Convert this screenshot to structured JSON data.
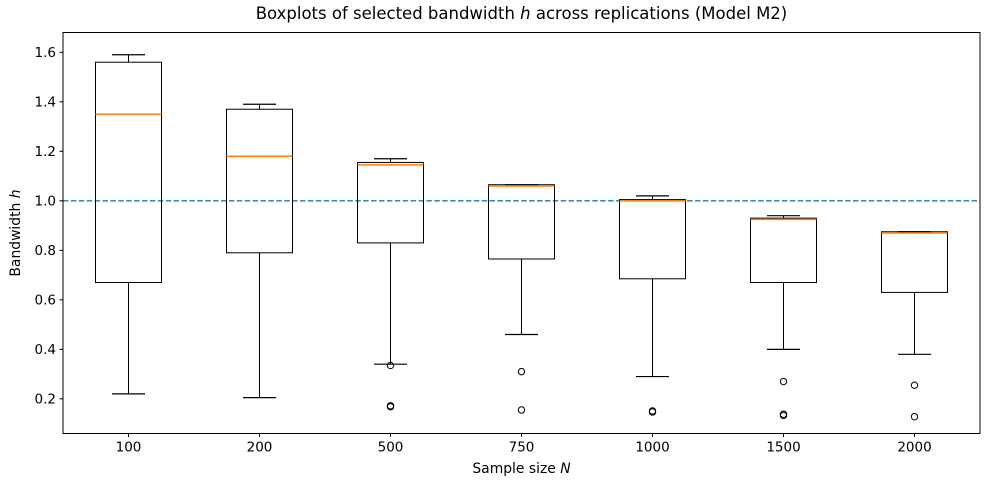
{
  "chart_data": {
    "type": "boxplot",
    "title": "Boxplots of selected bandwidth h across replications (Model M2)",
    "title_parts": {
      "prefix": "Boxplots of selected bandwidth ",
      "italic": "h",
      "suffix": " across replications (Model M2)"
    },
    "xlabel": "Sample size N",
    "xlabel_parts": {
      "prefix": "Sample size ",
      "italic": "N"
    },
    "ylabel": "Bandwidth h",
    "ylabel_parts": {
      "prefix": "Bandwidth ",
      "italic": "h"
    },
    "categories": [
      "100",
      "200",
      "500",
      "750",
      "1000",
      "1500",
      "2000"
    ],
    "ylim": [
      0.06,
      1.68
    ],
    "yticks": [
      0.2,
      0.4,
      0.6,
      0.8,
      1.0,
      1.2,
      1.4,
      1.6
    ],
    "ytick_labels": [
      "0.2",
      "0.4",
      "0.6",
      "0.8",
      "1.0",
      "1.2",
      "1.4",
      "1.6"
    ],
    "grid": false,
    "reference_line": {
      "y": 1.0,
      "style": "dashed",
      "color": "#1f77b4"
    },
    "colors": {
      "box": "#000000",
      "median": "#ff7f0e",
      "flier": "#000000",
      "spine": "#000000",
      "text": "#000000"
    },
    "boxes": [
      {
        "category": "100",
        "whislo": 0.22,
        "q1": 0.67,
        "med": 1.35,
        "q3": 1.56,
        "whishi": 1.59,
        "fliers": []
      },
      {
        "category": "200",
        "whislo": 0.205,
        "q1": 0.79,
        "med": 1.18,
        "q3": 1.37,
        "whishi": 1.39,
        "fliers": []
      },
      {
        "category": "500",
        "whislo": 0.34,
        "q1": 0.83,
        "med": 1.145,
        "q3": 1.155,
        "whishi": 1.17,
        "fliers": [
          0.335,
          0.172,
          0.168
        ]
      },
      {
        "category": "750",
        "whislo": 0.46,
        "q1": 0.765,
        "med": 1.06,
        "q3": 1.065,
        "whishi": 1.065,
        "fliers": [
          0.31,
          0.155
        ]
      },
      {
        "category": "1000",
        "whislo": 0.29,
        "q1": 0.685,
        "med": 1.0,
        "q3": 1.005,
        "whishi": 1.02,
        "fliers": [
          0.151,
          0.147
        ]
      },
      {
        "category": "1500",
        "whislo": 0.4,
        "q1": 0.67,
        "med": 0.925,
        "q3": 0.93,
        "whishi": 0.94,
        "fliers": [
          0.27,
          0.138,
          0.133
        ]
      },
      {
        "category": "2000",
        "whislo": 0.38,
        "q1": 0.63,
        "med": 0.87,
        "q3": 0.875,
        "whishi": 0.875,
        "fliers": [
          0.255,
          0.128
        ]
      }
    ]
  }
}
